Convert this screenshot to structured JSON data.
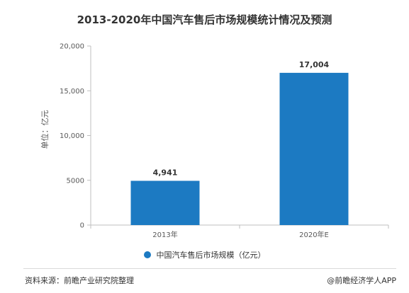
{
  "chart_data": {
    "type": "bar",
    "title": "2013-2020年中国汽车售后市场规模统计情况及预测",
    "ylabel": "单位：亿元",
    "xlabel": "",
    "categories": [
      "2013年",
      "2020年E"
    ],
    "series": [
      {
        "name": "中国汽车售后市场规模（亿元）",
        "values": [
          4941,
          17004
        ],
        "color": "#1c7ac2"
      }
    ],
    "data_labels": [
      "4,941",
      "17,004"
    ],
    "ylim": [
      0,
      20000
    ],
    "yticks": [
      0,
      5000,
      10000,
      15000,
      20000
    ],
    "ytick_labels": [
      "0",
      "5000",
      "10,000",
      "15,000",
      "20,000"
    ],
    "grid": false,
    "legend_position": "bottom"
  },
  "footer": {
    "source": "资料来源：前瞻产业研究院整理",
    "credit": "@前瞻经济学人APP"
  }
}
